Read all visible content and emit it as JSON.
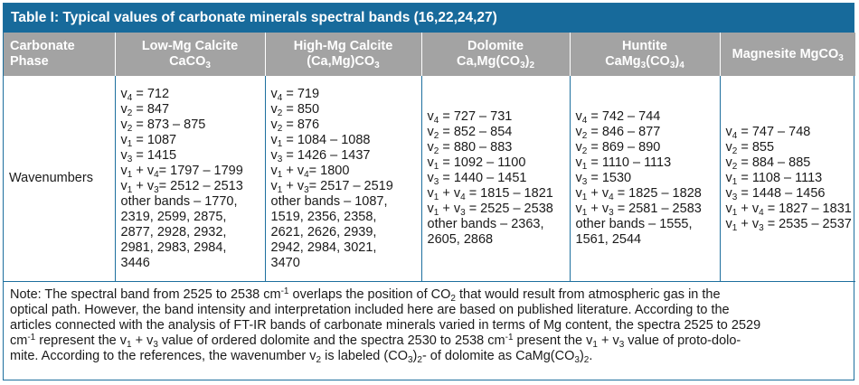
{
  "title": "Table I: Typical values of carbonate minerals spectral bands (16,22,24,27)",
  "headers": {
    "phase": [
      "Carbonate",
      "Phase"
    ],
    "low_mg": [
      "Low-Mg Calcite",
      "CaCO",
      "3"
    ],
    "high_mg": [
      "High-Mg Calcite",
      "(Ca,Mg)CO",
      "3"
    ],
    "dolomite": [
      "Dolomite",
      "Ca,Mg(CO",
      "3",
      ")",
      "2"
    ],
    "huntite": [
      "Huntite",
      "CaMg",
      "3",
      "(CO",
      "3",
      ")",
      "4"
    ],
    "magnesite": [
      "Magnesite MgCO",
      "3"
    ]
  },
  "row_label": "Wavenumbers",
  "low_mg": {
    "a": "= 712",
    "b": "= 847",
    "c": "= 873 – 875",
    "d": "= 1087",
    "e": "= 1415",
    "f": "= 1797 – 1799",
    "g": "= 2512 – 2513",
    "other": [
      "other bands – 1770,",
      "2319, 2599, 2875,",
      "2877, 2928, 2932,",
      "2981, 2983, 2984,",
      "3446"
    ]
  },
  "high_mg": {
    "a": "= 719",
    "b": "= 850",
    "c": "= 876",
    "d": "= 1084 – 1088",
    "e": "= 1426 – 1437",
    "f": "= 1800",
    "g": "= 2517 – 2519",
    "other": [
      "other bands – 1087,",
      "1519, 2356, 2358,",
      "2621, 2626, 2939,",
      "2942, 2984, 3021,",
      "3470"
    ]
  },
  "dolomite": {
    "a": "= 727 – 731",
    "b": "= 852 – 854",
    "c": "= 880 – 883",
    "d": "= 1092 – 1100",
    "e": "= 1440 – 1451",
    "f": "= 1815 – 1821",
    "g": "= 2525 – 2538",
    "other": [
      "other bands – 2363,",
      "2605, 2868"
    ]
  },
  "huntite": {
    "a": "= 742 – 744",
    "b": "= 846 – 877",
    "c": "= 869 – 890",
    "d": "= 1110 – 1113",
    "e": "= 1530",
    "f": "= 1825 – 1828",
    "g": "= 2581 – 2583",
    "other": [
      "other bands – 1555,",
      "1561, 2544"
    ]
  },
  "magnesite": {
    "a": "= 747 – 748",
    "b": "= 855",
    "c": "= 884 – 885",
    "d": "= 1108 – 1113",
    "e": "= 1448 – 1456",
    "f": "= 1827 – 1831",
    "g": "= 2535 – 2537"
  },
  "sym": {
    "v": "v",
    "n1": "1",
    "n2": "2",
    "n3": "3",
    "n4": "4",
    "plus": " + ",
    "e_plus": "+",
    "e_eq": "=",
    "cm": "-1"
  },
  "note": {
    "s1": "Note: The spectral band from 2525 to 2538 cm",
    "s2": " overlaps the position of CO",
    "s3": " that would result from atmospheric gas in the",
    "s4": "optical path. However, the band intensity and interpretation included here are based on published literature. According to the",
    "s5": "articles connected with the analysis of FT-IR bands of carbonate minerals varied in terms of Mg content, the spectra 2525 to 2529",
    "s6": "cm",
    "s7": " represent the v",
    "s8": " + v",
    "s9": " value of ordered dolomite and the spectra 2530 to 2538 cm",
    "s10": " present the v",
    "s11": " + v",
    "s12": " value of proto-dolo-",
    "s13": "mite. According to the references, the wavenumber v",
    "s14": " is labeled (CO",
    "s15": ")",
    "s16": "- of dolomite as CaMg(CO",
    "s17": ")",
    "s18": "."
  }
}
